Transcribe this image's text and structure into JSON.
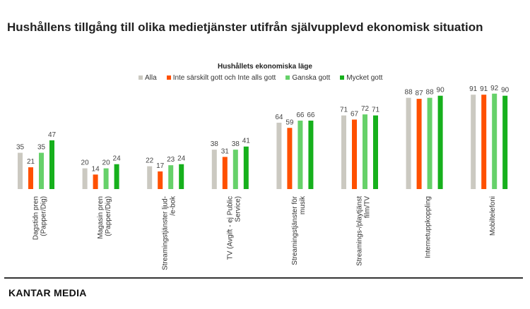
{
  "title": "Hushållens tillgång till olika medietjänster utifrån självupplevd ekonomisk situation",
  "footer": {
    "logo": "KANTAR MEDIA"
  },
  "chart_data": {
    "type": "bar",
    "title": "Hushållens tillgång till olika medietjänster utifrån självupplevd ekonomisk situation",
    "legend_title": "Hushållets ekonomiska läge",
    "legend_position": "top-center",
    "categories": [
      "Dagstidn pren\n(Papper/Dig)",
      "Magasin pren\n(Papper/Dig)",
      "Streamingstjänster ljud-\n/e-bok",
      "TV (Avgift - ej Public\nService)",
      "Streamingstjänster för\nmusik",
      "Streamings-/playtjänst\nfilm/TV",
      "Internetuppkoppling",
      "Mobiltelefoni"
    ],
    "series": [
      {
        "name": "Alla",
        "color": "#cbc9c1",
        "values": [
          35,
          20,
          22,
          38,
          64,
          71,
          88,
          91
        ]
      },
      {
        "name": "Inte särskilt gott och Inte alls gott",
        "color": "#ff5000",
        "values": [
          21,
          14,
          17,
          31,
          59,
          67,
          87,
          91
        ]
      },
      {
        "name": "Ganska gott",
        "color": "#66d16a",
        "values": [
          35,
          20,
          23,
          38,
          66,
          72,
          88,
          92
        ]
      },
      {
        "name": "Mycket gott",
        "color": "#16b01c",
        "values": [
          47,
          24,
          24,
          41,
          66,
          71,
          90,
          90
        ]
      }
    ],
    "ylim": [
      0,
      100
    ],
    "grid": false
  }
}
